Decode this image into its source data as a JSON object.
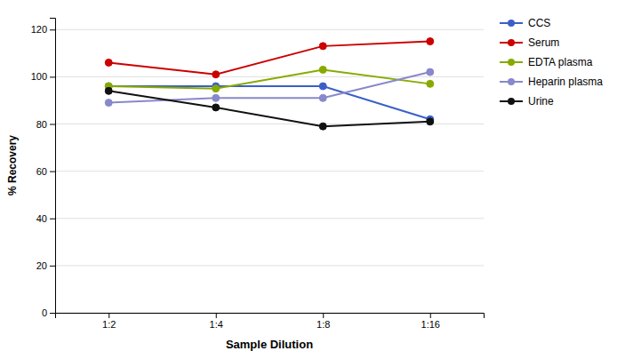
{
  "chart_data": {
    "type": "line",
    "xlabel": "Sample Dilution",
    "ylabel": "% Recovery",
    "categories": [
      "1:2",
      "1:4",
      "1:8",
      "1:16"
    ],
    "series": [
      {
        "name": "CCS",
        "color": "#3A60C8",
        "values": [
          96,
          96,
          96,
          82
        ]
      },
      {
        "name": "Serum",
        "color": "#CC0000",
        "values": [
          106,
          101,
          113,
          115
        ]
      },
      {
        "name": "EDTA plasma",
        "color": "#88AA00",
        "values": [
          96,
          95,
          103,
          97
        ]
      },
      {
        "name": "Heparin plasma",
        "color": "#8888CC",
        "values": [
          89,
          91,
          91,
          102
        ]
      },
      {
        "name": "Urine",
        "color": "#111111",
        "values": [
          94,
          87,
          79,
          81
        ]
      }
    ],
    "ylim": [
      0,
      125
    ],
    "yticks": [
      0,
      20,
      40,
      60,
      80,
      100,
      120
    ],
    "grid": true,
    "legend": "right",
    "marker": "circle"
  }
}
